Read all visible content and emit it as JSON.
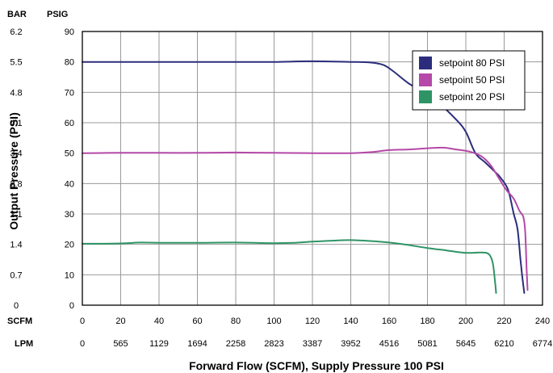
{
  "chart_data": {
    "type": "line",
    "xlabel": "Forward Flow (SCFM), Supply Pressure 100 PSI",
    "ylabel": "Output Pressure (PSI)",
    "left_axis_header": "BAR",
    "right_axis_header": "PSIG",
    "bar_ticks": [
      "0",
      "0.7",
      "1.4",
      "2.1",
      "2.8",
      "3.4",
      "4.1",
      "4.8",
      "5.5",
      "6.2"
    ],
    "psig_ticks": [
      "0",
      "10",
      "20",
      "30",
      "40",
      "50",
      "60",
      "70",
      "80",
      "90"
    ],
    "scfm_label": "SCFM",
    "lpm_label": "LPM",
    "scfm_ticks": [
      "0",
      "20",
      "40",
      "60",
      "80",
      "100",
      "120",
      "140",
      "160",
      "180",
      "200",
      "220",
      "240"
    ],
    "lpm_ticks": [
      "0",
      "565",
      "1129",
      "1694",
      "2258",
      "2823",
      "3387",
      "3952",
      "4516",
      "5081",
      "5645",
      "6210",
      "6774"
    ],
    "xlim": [
      0,
      240
    ],
    "ylim": [
      0,
      90
    ],
    "grid": true,
    "legend_position": "top-right",
    "series": [
      {
        "name": "setpoint 80 PSI",
        "color": "#2b2d7c",
        "points": [
          [
            0,
            80
          ],
          [
            20,
            80
          ],
          [
            40,
            80
          ],
          [
            60,
            80
          ],
          [
            80,
            80
          ],
          [
            100,
            80
          ],
          [
            120,
            80.2
          ],
          [
            140,
            80
          ],
          [
            150,
            79.8
          ],
          [
            157,
            79
          ],
          [
            162,
            77
          ],
          [
            170,
            73
          ],
          [
            178,
            70
          ],
          [
            185,
            67
          ],
          [
            195,
            61
          ],
          [
            200,
            57
          ],
          [
            205,
            50
          ],
          [
            210,
            47
          ],
          [
            215,
            44
          ],
          [
            218,
            42
          ],
          [
            222,
            38
          ],
          [
            225,
            30
          ],
          [
            227,
            25
          ],
          [
            228.5,
            15
          ],
          [
            229.5,
            9
          ],
          [
            230.5,
            4
          ]
        ]
      },
      {
        "name": "setpoint 50 PSI",
        "color": "#b548a8",
        "points": [
          [
            0,
            50
          ],
          [
            20,
            50.1
          ],
          [
            40,
            50.1
          ],
          [
            60,
            50.1
          ],
          [
            80,
            50.2
          ],
          [
            100,
            50.1
          ],
          [
            120,
            50
          ],
          [
            140,
            50
          ],
          [
            150,
            50.3
          ],
          [
            160,
            51
          ],
          [
            170,
            51.2
          ],
          [
            180,
            51.6
          ],
          [
            188,
            51.8
          ],
          [
            195,
            51.2
          ],
          [
            202,
            50.5
          ],
          [
            208,
            49
          ],
          [
            213,
            46
          ],
          [
            217,
            42
          ],
          [
            221,
            38
          ],
          [
            225,
            35
          ],
          [
            228,
            31
          ],
          [
            230,
            29
          ],
          [
            231,
            24
          ],
          [
            231.7,
            12
          ],
          [
            232.2,
            5
          ]
        ]
      },
      {
        "name": "setpoint 20 PSI",
        "color": "#2e9466",
        "points": [
          [
            0,
            20.2
          ],
          [
            20,
            20.3
          ],
          [
            30,
            20.6
          ],
          [
            40,
            20.5
          ],
          [
            60,
            20.5
          ],
          [
            80,
            20.6
          ],
          [
            100,
            20.4
          ],
          [
            110,
            20.5
          ],
          [
            120,
            20.9
          ],
          [
            130,
            21.2
          ],
          [
            140,
            21.4
          ],
          [
            150,
            21.1
          ],
          [
            160,
            20.6
          ],
          [
            170,
            19.8
          ],
          [
            180,
            18.8
          ],
          [
            190,
            18
          ],
          [
            200,
            17.2
          ],
          [
            208,
            17.3
          ],
          [
            212,
            16.8
          ],
          [
            214,
            14
          ],
          [
            215.2,
            8
          ],
          [
            215.8,
            4
          ]
        ]
      }
    ]
  }
}
